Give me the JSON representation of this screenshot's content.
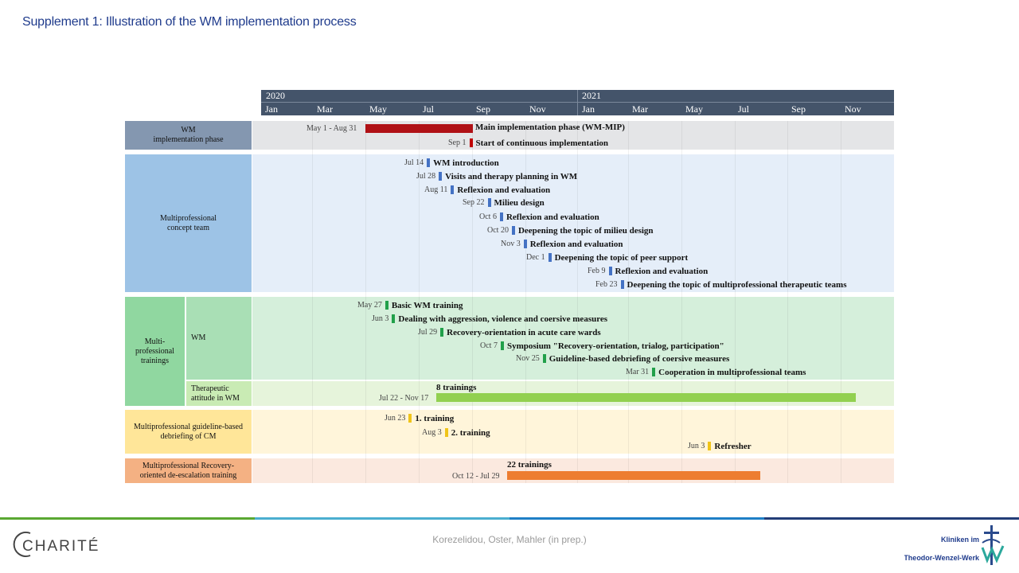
{
  "title": "Supplement 1: Illustration of the WM implementation process",
  "years": [
    "2020",
    "2021"
  ],
  "months": [
    "Jan",
    "Mar",
    "May",
    "Jul",
    "Sep",
    "Nov",
    "Jan",
    "Mar",
    "May",
    "Jul",
    "Sep",
    "Nov"
  ],
  "groups": {
    "wm_phase": "WM\nimplementation phase",
    "concept_team": "Multiprofessional\nconcept team",
    "trainings": "Multi-\nprofessional\ntrainings",
    "trainings_wm": "WM",
    "trainings_therapeutic": "Therapeutic\nattitude in WM",
    "guideline_debriefing": "Multiprofessional guideline-based\ndebriefing of CM",
    "deescalation": "Multiprofessional Recovery-\noriented de-escalation training"
  },
  "phase_bar": {
    "date": "May 1 - Aug 31",
    "label": "Main implementation phase (WM-MIP)",
    "color": "#b01116"
  },
  "phase_event": {
    "date": "Sep 1",
    "label": "Start of continuous implementation",
    "color": "#c00000"
  },
  "concept_events": [
    {
      "date": "Jul 14",
      "label": "WM introduction"
    },
    {
      "date": "Jul 28",
      "label": "Visits and therapy planning in WM"
    },
    {
      "date": "Aug 11",
      "label": "Reflexion and evaluation"
    },
    {
      "date": "Sep 22",
      "label": "Milieu design"
    },
    {
      "date": "Oct 6",
      "label": "Reflexion and evaluation"
    },
    {
      "date": "Oct 20",
      "label": "Deepening the topic of milieu design"
    },
    {
      "date": "Nov 3",
      "label": "Reflexion and evaluation"
    },
    {
      "date": "Dec 1",
      "label": "Deepening the topic of peer support"
    },
    {
      "date": "Feb 9",
      "label": "Reflexion and evaluation"
    },
    {
      "date": "Feb 23",
      "label": "Deepening the topic of multiprofessional therapeutic teams"
    }
  ],
  "training_events": [
    {
      "date": "May 27",
      "label": "Basic WM training"
    },
    {
      "date": "Jun 3",
      "label": "Dealing with aggression, violence and coersive measures"
    },
    {
      "date": "Jul 29",
      "label": "Recovery-orientation in acute care wards"
    },
    {
      "date": "Oct 7",
      "label": "Symposium \"Recovery-orientation, trialog, participation\""
    },
    {
      "date": "Nov 25",
      "label": "Guideline-based debriefing of coersive measures"
    },
    {
      "date": "Mar 31",
      "label": "Cooperation in multiprofessional teams"
    }
  ],
  "therapeutic_bar": {
    "date": "Jul 22 - Nov 17",
    "label": "8 trainings",
    "color": "#92d050"
  },
  "debriefing_events": [
    {
      "date": "Jun 23",
      "label": "1. training"
    },
    {
      "date": "Aug 3",
      "label": "2. training"
    },
    {
      "date": "Jun 3",
      "label": "Refresher"
    }
  ],
  "deescalation_bar": {
    "date": "Oct 12 - Jul 29",
    "label": "22 trainings",
    "color": "#ed7d31"
  },
  "colors": {
    "concept_marker": "#4472c4",
    "training_marker": "#21a04a",
    "debriefing_marker": "#f0c419",
    "header": "#44546a"
  },
  "citation": "Korezelidou, Oster, Mahler (in prep.)",
  "logo_left": "CHARITÉ",
  "logo_right": "Kliniken im\nTheodor-Wenzel-Werk"
}
